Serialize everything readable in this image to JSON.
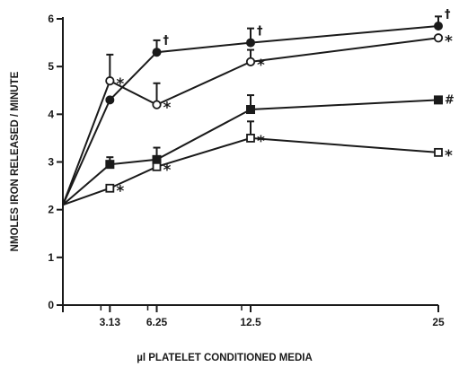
{
  "chart_data": {
    "type": "line",
    "xlabel": "µl PLATELET CONDITIONED MEDIA",
    "ylabel": "NMOLES IRON RELEASED / MINUTE",
    "xlim": [
      0,
      25
    ],
    "ylim": [
      0,
      6
    ],
    "x_ticks": [
      3.13,
      6.25,
      12.5,
      25
    ],
    "x_tick_labels": [
      "3.13",
      "6.25",
      "12.5",
      "25"
    ],
    "y_ticks": [
      0,
      1,
      2,
      3,
      4,
      5,
      6
    ],
    "y_tick_labels": [
      "0",
      "1",
      "2",
      "3",
      "4",
      "5",
      "6"
    ],
    "grid": false,
    "series": [
      {
        "marker": "filled-circle",
        "x": [
          0,
          3.13,
          6.25,
          12.5,
          25
        ],
        "y": [
          2.1,
          4.3,
          5.3,
          5.5,
          5.85
        ],
        "error_up": [
          0,
          0,
          0.25,
          0.3,
          0.2
        ],
        "labels": [
          "",
          "",
          "†",
          "†",
          "†"
        ]
      },
      {
        "marker": "open-circle",
        "x": [
          0,
          3.13,
          6.25,
          12.5,
          25
        ],
        "y": [
          2.1,
          4.7,
          4.2,
          5.1,
          5.6
        ],
        "error_up": [
          0,
          0.55,
          0.45,
          0.25,
          0
        ],
        "labels": [
          "",
          "*",
          "*",
          "*",
          "*"
        ]
      },
      {
        "marker": "filled-square",
        "x": [
          0,
          3.13,
          6.25,
          12.5,
          25
        ],
        "y": [
          2.1,
          2.95,
          3.05,
          4.1,
          4.3
        ],
        "error_up": [
          0,
          0.15,
          0.25,
          0.3,
          0
        ],
        "labels": [
          "",
          "",
          "",
          "",
          "#"
        ]
      },
      {
        "marker": "open-square",
        "x": [
          0,
          3.13,
          6.25,
          12.5,
          25
        ],
        "y": [
          2.1,
          2.45,
          2.9,
          3.5,
          3.2
        ],
        "error_up": [
          0,
          0,
          0,
          0.35,
          0
        ],
        "labels": [
          "",
          "*",
          "*",
          "*",
          "*"
        ]
      }
    ],
    "ink_color": "#1a1a1a"
  }
}
